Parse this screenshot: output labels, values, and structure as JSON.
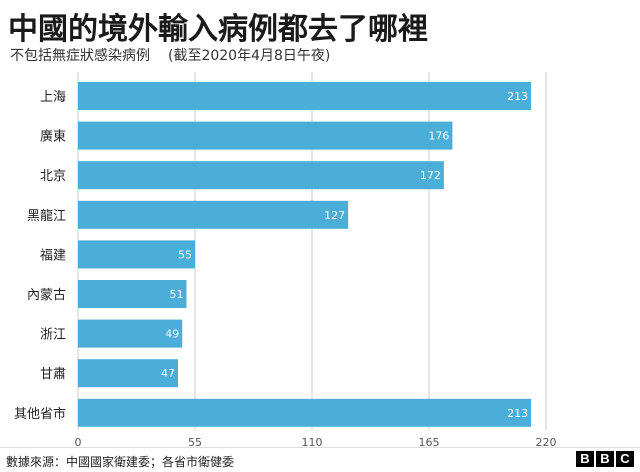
{
  "title": "中國的境外輸入病例都去了哪裡",
  "subtitle": "不包括無症狀感染病例",
  "subtitle_date": "(截至2020年4月8日午夜)",
  "source": "數據來源：中國國家衛建委；各省市衛健委",
  "logo": [
    "B",
    "B",
    "C"
  ],
  "colors": {
    "bar": "#4aaed9",
    "grid": "#cccccc",
    "value_label": "#ffffff"
  },
  "chart_data": {
    "type": "bar",
    "orientation": "horizontal",
    "categories": [
      "上海",
      "廣東",
      "北京",
      "黑龍江",
      "福建",
      "內蒙古",
      "浙江",
      "甘肅",
      "其他省市"
    ],
    "values": [
      213,
      176,
      172,
      127,
      55,
      51,
      49,
      47,
      213
    ],
    "value_labels": [
      "213",
      "176",
      "172",
      "127",
      "55",
      "51",
      "49",
      "47",
      "213"
    ],
    "xlim": [
      0,
      220
    ],
    "xticks": [
      0,
      55,
      110,
      165,
      220
    ],
    "xlabel": "",
    "ylabel": "",
    "grid": true
  }
}
